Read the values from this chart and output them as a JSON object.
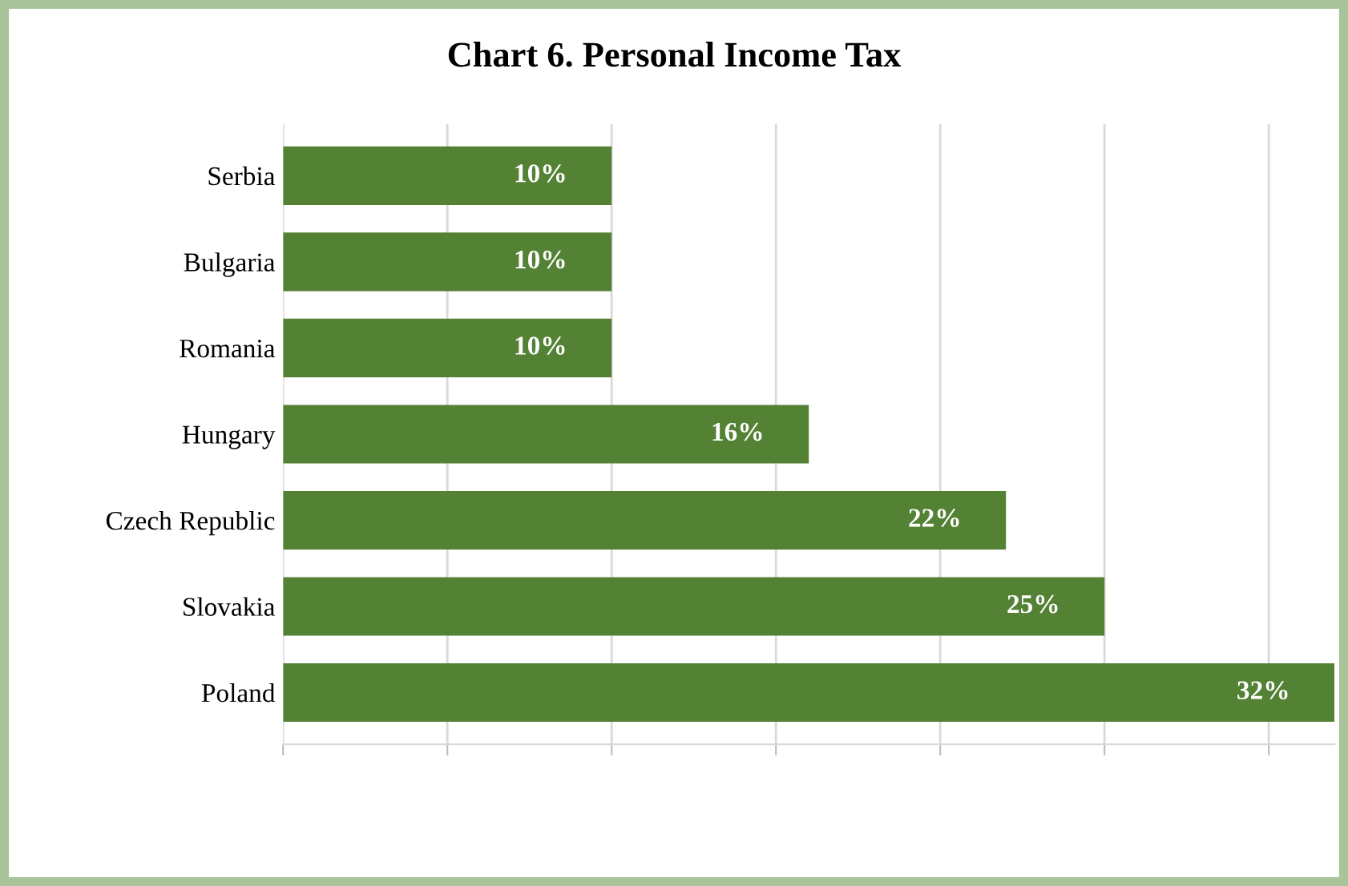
{
  "chart_data": {
    "type": "bar",
    "orientation": "horizontal",
    "title": "Chart 6. Personal Income Tax",
    "categories": [
      "Serbia",
      "Bulgaria",
      "Romania",
      "Hungary",
      "Czech Republic",
      "Slovakia",
      "Poland"
    ],
    "values": [
      10,
      10,
      10,
      16,
      22,
      25,
      32
    ],
    "value_labels": [
      "10%",
      "10%",
      "10%",
      "16%",
      "22%",
      "25%",
      "32%"
    ],
    "color": "#548235",
    "xlim": [
      0,
      32
    ],
    "xticks": [
      {
        "value": 0,
        "label": null
      },
      {
        "value": 5,
        "label": null
      },
      {
        "value": 10,
        "label": null
      },
      {
        "value": 15,
        "label": null
      },
      {
        "value": 20,
        "label": null
      },
      {
        "value": 25,
        "label": null
      },
      {
        "value": 30,
        "label": null
      }
    ],
    "tick_labels": "y",
    "grid": "x",
    "legend": false
  }
}
